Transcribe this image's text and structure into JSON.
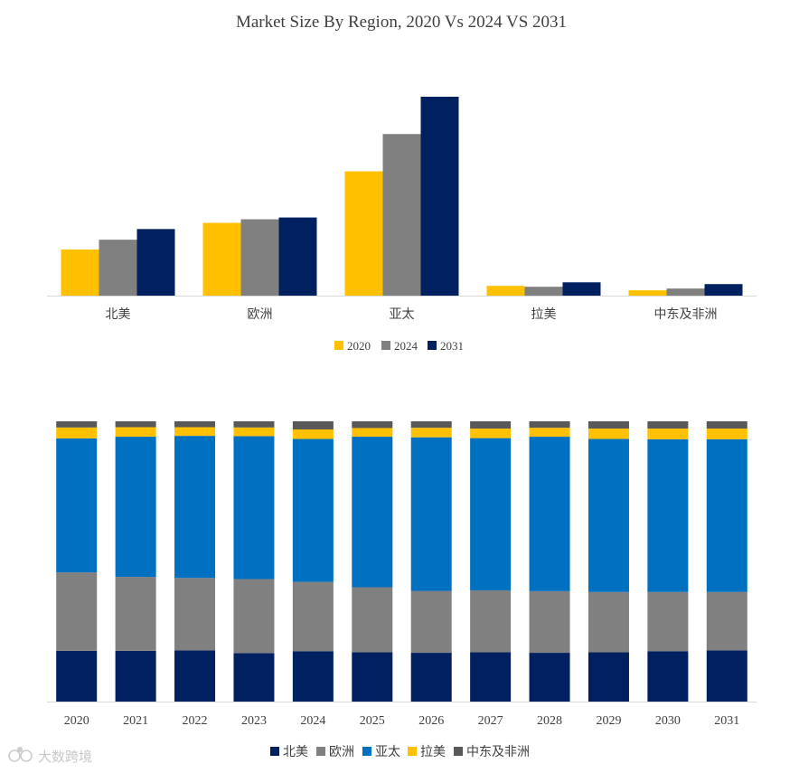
{
  "watermark": "大数跨境",
  "chart_data": [
    {
      "type": "bar",
      "title": "Market Size By Region, 2020 Vs 2024 VS 2031",
      "categories": [
        "北美",
        "欧洲",
        "亚太",
        "拉美",
        "中东及非洲"
      ],
      "series": [
        {
          "name": "2020",
          "color": "#ffc000",
          "values": [
            26,
            41,
            70,
            5.5,
            3
          ]
        },
        {
          "name": "2024",
          "color": "#808080",
          "values": [
            31.5,
            43,
            91,
            5,
            4
          ]
        },
        {
          "name": "2031",
          "color": "#002060",
          "values": [
            37.5,
            44,
            112,
            7.5,
            6.5
          ]
        }
      ],
      "ylim": [
        0,
        112
      ],
      "legend": "bottom-center"
    },
    {
      "type": "bar",
      "stacked": "percent",
      "categories": [
        "2020",
        "2021",
        "2022",
        "2023",
        "2024",
        "2025",
        "2026",
        "2027",
        "2028",
        "2029",
        "2030",
        "2031"
      ],
      "series": [
        {
          "name": "北美",
          "color": "#002060",
          "values": [
            18.1,
            18.1,
            18.3,
            17.3,
            17.9,
            17.6,
            17.4,
            17.6,
            17.4,
            17.6,
            17.9,
            18.3
          ]
        },
        {
          "name": "欧洲",
          "color": "#808080",
          "values": [
            28.0,
            26.4,
            25.8,
            26.4,
            24.8,
            23.2,
            22.1,
            22.1,
            22.0,
            21.5,
            21.2,
            20.8
          ]
        },
        {
          "name": "亚太",
          "color": "#0070c0",
          "values": [
            47.8,
            50.0,
            50.7,
            51.0,
            51.0,
            53.7,
            54.8,
            54.3,
            55.1,
            54.6,
            54.5,
            54.5
          ]
        },
        {
          "name": "拉美",
          "color": "#ffc000",
          "values": [
            3.9,
            3.4,
            3.1,
            3.1,
            3.4,
            3.1,
            3.4,
            3.4,
            3.2,
            3.7,
            3.8,
            3.8
          ]
        },
        {
          "name": "中东及非洲",
          "color": "#595959",
          "values": [
            2.2,
            2.1,
            2.1,
            2.2,
            2.9,
            2.4,
            2.3,
            2.6,
            2.3,
            2.6,
            2.6,
            2.6
          ]
        }
      ],
      "ylim": [
        0,
        100
      ],
      "legend": "bottom-center"
    }
  ]
}
